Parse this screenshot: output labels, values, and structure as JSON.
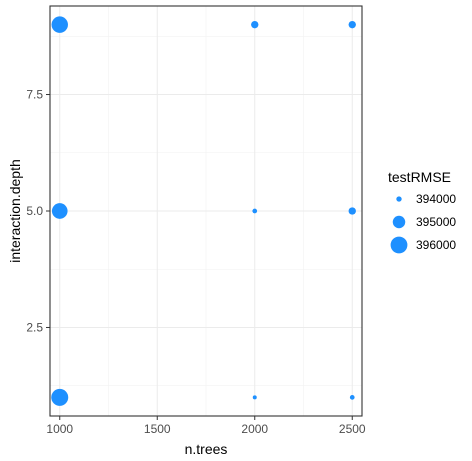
{
  "chart_data": {
    "type": "scatter",
    "xlabel": "n.trees",
    "ylabel": "interaction.depth",
    "xlim": [
      950,
      2550
    ],
    "ylim": [
      0.6,
      9.4
    ],
    "x_ticks": [
      1000,
      1500,
      2000,
      2500
    ],
    "x_tick_labels": [
      "1000",
      "1500",
      "2000",
      "2500"
    ],
    "y_ticks": [
      2.5,
      5.0,
      7.5
    ],
    "y_tick_labels": [
      "2.5",
      "5.0",
      "7.5"
    ],
    "grid": true,
    "point_color": "#1E90FF",
    "size_variable": "testRMSE",
    "size_range": [
      393900,
      396050
    ],
    "points": [
      {
        "x": 1000,
        "y": 9,
        "testRMSE": 395900
      },
      {
        "x": 2000,
        "y": 9,
        "testRMSE": 394200
      },
      {
        "x": 2500,
        "y": 9,
        "testRMSE": 394200
      },
      {
        "x": 1000,
        "y": 5,
        "testRMSE": 395700
      },
      {
        "x": 2000,
        "y": 5,
        "testRMSE": 393950
      },
      {
        "x": 2500,
        "y": 5,
        "testRMSE": 394200
      },
      {
        "x": 1000,
        "y": 1,
        "testRMSE": 396050
      },
      {
        "x": 2000,
        "y": 1,
        "testRMSE": 393900
      },
      {
        "x": 2500,
        "y": 1,
        "testRMSE": 393950
      }
    ],
    "legend": {
      "title": "testRMSE",
      "position": "right",
      "entries": [
        {
          "value": 394000,
          "label": "394000"
        },
        {
          "value": 395000,
          "label": "395000"
        },
        {
          "value": 396000,
          "label": "396000"
        }
      ]
    }
  }
}
